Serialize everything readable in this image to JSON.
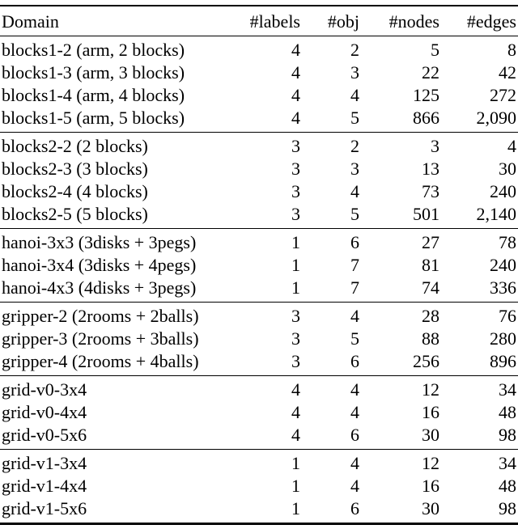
{
  "page": {
    "background_color": "#ffffff",
    "text_color": "#000000",
    "rule_color": "#000000"
  },
  "table": {
    "columns": [
      "Domain",
      "#labels",
      "#obj",
      "#nodes",
      "#edges"
    ],
    "sections": [
      {
        "name": "blocks1",
        "rows": [
          [
            "blocks1-2 (arm, 2 blocks)",
            "4",
            "2",
            "5",
            "8"
          ],
          [
            "blocks1-3 (arm, 3 blocks)",
            "4",
            "3",
            "22",
            "42"
          ],
          [
            "blocks1-4 (arm, 4 blocks)",
            "4",
            "4",
            "125",
            "272"
          ],
          [
            "blocks1-5 (arm, 5 blocks)",
            "4",
            "5",
            "866",
            "2,090"
          ]
        ]
      },
      {
        "name": "blocks2",
        "rows": [
          [
            "blocks2-2 (2 blocks)",
            "3",
            "2",
            "3",
            "4"
          ],
          [
            "blocks2-3 (3 blocks)",
            "3",
            "3",
            "13",
            "30"
          ],
          [
            "blocks2-4 (4 blocks)",
            "3",
            "4",
            "73",
            "240"
          ],
          [
            "blocks2-5 (5 blocks)",
            "3",
            "5",
            "501",
            "2,140"
          ]
        ]
      },
      {
        "name": "hanoi",
        "rows": [
          [
            "hanoi-3x3 (3disks + 3pegs)",
            "1",
            "6",
            "27",
            "78"
          ],
          [
            "hanoi-3x4 (3disks + 4pegs)",
            "1",
            "7",
            "81",
            "240"
          ],
          [
            "hanoi-4x3 (4disks + 3pegs)",
            "1",
            "7",
            "74",
            "336"
          ]
        ]
      },
      {
        "name": "gripper",
        "rows": [
          [
            "gripper-2 (2rooms + 2balls)",
            "3",
            "4",
            "28",
            "76"
          ],
          [
            "gripper-3 (2rooms + 3balls)",
            "3",
            "5",
            "88",
            "280"
          ],
          [
            "gripper-4 (2rooms + 4balls)",
            "3",
            "6",
            "256",
            "896"
          ]
        ]
      },
      {
        "name": "grid-v0",
        "rows": [
          [
            "grid-v0-3x4",
            "4",
            "4",
            "12",
            "34"
          ],
          [
            "grid-v0-4x4",
            "4",
            "4",
            "16",
            "48"
          ],
          [
            "grid-v0-5x6",
            "4",
            "6",
            "30",
            "98"
          ]
        ]
      },
      {
        "name": "grid-v1",
        "rows": [
          [
            "grid-v1-3x4",
            "1",
            "4",
            "12",
            "34"
          ],
          [
            "grid-v1-4x4",
            "1",
            "4",
            "16",
            "48"
          ],
          [
            "grid-v1-5x6",
            "1",
            "6",
            "30",
            "98"
          ]
        ]
      }
    ]
  }
}
